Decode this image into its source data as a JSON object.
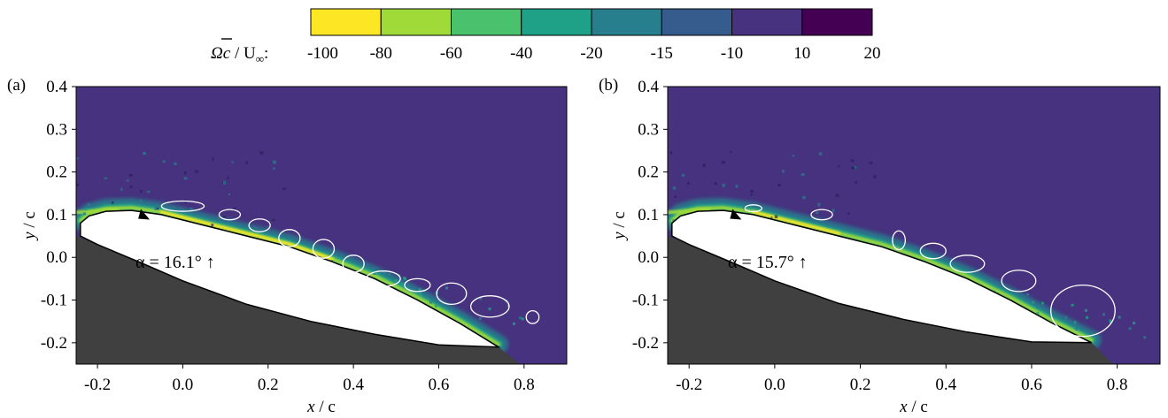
{
  "colorbar": {
    "label_main": "Ωc",
    "label_rest": " / U",
    "label_sub": "∞",
    "label_colon": ":",
    "ticks": [
      "-100",
      "-80",
      "-60",
      "-40",
      "-20",
      "-15",
      "-10",
      "10",
      "20"
    ],
    "colors": [
      "#fde725",
      "#a0da39",
      "#4ac16d",
      "#1fa187",
      "#277f8e",
      "#365c8d",
      "#46327e",
      "#440154"
    ]
  },
  "colors": {
    "background_field": "#46327e",
    "airfoil": "#ffffff",
    "shadow": "#404040",
    "contour": "#ffffff",
    "shear_layer_weak": "#277f8e",
    "shear_layer_mid": "#1fa187",
    "shear_layer_strong": "#a0da39",
    "shear_layer_peak": "#fde725"
  },
  "chart_data": [
    {
      "type": "heatmap",
      "panel_label": "(a)",
      "xlabel_main": "x",
      "xlabel_rest": " / c",
      "ylabel_main": "y",
      "ylabel_rest": " / c",
      "xlim": [
        -0.25,
        0.9
      ],
      "ylim": [
        -0.25,
        0.4
      ],
      "xticks": [
        -0.2,
        0.0,
        0.2,
        0.4,
        0.6,
        0.8
      ],
      "xtick_labels": [
        "-0.2",
        "0.0",
        "0.2",
        "0.4",
        "0.6",
        "0.8"
      ],
      "yticks": [
        -0.2,
        -0.1,
        0.0,
        0.1,
        0.2,
        0.3,
        0.4
      ],
      "ytick_labels": [
        "-0.2",
        "-0.1",
        "0.0",
        "0.1",
        "0.2",
        "0.3",
        "0.4"
      ],
      "annotation": "α = 16.1° ↑",
      "airfoil": {
        "upper": [
          [
            -0.24,
            0.08
          ],
          [
            -0.22,
            0.097
          ],
          [
            -0.18,
            0.108
          ],
          [
            -0.12,
            0.11
          ],
          [
            -0.05,
            0.1
          ],
          [
            0.05,
            0.075
          ],
          [
            0.15,
            0.05
          ],
          [
            0.25,
            0.025
          ],
          [
            0.35,
            -0.01
          ],
          [
            0.45,
            -0.05
          ],
          [
            0.55,
            -0.1
          ],
          [
            0.65,
            -0.155
          ],
          [
            0.74,
            -0.21
          ]
        ],
        "lower": [
          [
            0.74,
            -0.21
          ],
          [
            0.6,
            -0.205
          ],
          [
            0.45,
            -0.18
          ],
          [
            0.3,
            -0.15
          ],
          [
            0.15,
            -0.11
          ],
          [
            0.0,
            -0.055
          ],
          [
            -0.1,
            -0.012
          ],
          [
            -0.2,
            0.03
          ],
          [
            -0.24,
            0.05
          ]
        ]
      },
      "shadow": [
        [
          -0.25,
          0.05
        ],
        [
          -0.2,
          0.03
        ],
        [
          -0.1,
          -0.012
        ],
        [
          0.0,
          -0.055
        ],
        [
          0.15,
          -0.11
        ],
        [
          0.3,
          -0.15
        ],
        [
          0.45,
          -0.18
        ],
        [
          0.6,
          -0.205
        ],
        [
          0.74,
          -0.21
        ],
        [
          0.79,
          -0.25
        ],
        [
          -0.25,
          -0.25
        ]
      ],
      "marker": [
        -0.09,
        0.105
      ],
      "shear_layer": {
        "start": [
          -0.24,
          0.1
        ],
        "end": [
          0.8,
          -0.15
        ],
        "peak_range": [
          -0.05,
          0.35
        ]
      },
      "vortex_contours": [
        {
          "x": 0.0,
          "y": 0.12,
          "rx": 0.05,
          "ry": 0.012
        },
        {
          "x": 0.11,
          "y": 0.1,
          "rx": 0.025,
          "ry": 0.012
        },
        {
          "x": 0.18,
          "y": 0.075,
          "rx": 0.025,
          "ry": 0.015
        },
        {
          "x": 0.25,
          "y": 0.045,
          "rx": 0.025,
          "ry": 0.02
        },
        {
          "x": 0.33,
          "y": 0.02,
          "rx": 0.025,
          "ry": 0.022
        },
        {
          "x": 0.4,
          "y": -0.015,
          "rx": 0.025,
          "ry": 0.02
        },
        {
          "x": 0.47,
          "y": -0.05,
          "rx": 0.04,
          "ry": 0.018
        },
        {
          "x": 0.55,
          "y": -0.065,
          "rx": 0.03,
          "ry": 0.015
        },
        {
          "x": 0.63,
          "y": -0.085,
          "rx": 0.035,
          "ry": 0.025
        },
        {
          "x": 0.72,
          "y": -0.115,
          "rx": 0.045,
          "ry": 0.025
        },
        {
          "x": 0.82,
          "y": -0.14,
          "rx": 0.015,
          "ry": 0.015
        }
      ]
    },
    {
      "type": "heatmap",
      "panel_label": "(b)",
      "xlabel_main": "x",
      "xlabel_rest": " / c",
      "ylabel_main": "y",
      "ylabel_rest": " / c",
      "xlim": [
        -0.25,
        0.9
      ],
      "ylim": [
        -0.25,
        0.4
      ],
      "xticks": [
        -0.2,
        0.0,
        0.2,
        0.4,
        0.6,
        0.8
      ],
      "xtick_labels": [
        "-0.2",
        "0.0",
        "0.2",
        "0.4",
        "0.6",
        "0.8"
      ],
      "yticks": [
        -0.2,
        -0.1,
        0.0,
        0.1,
        0.2,
        0.3,
        0.4
      ],
      "ytick_labels": [
        "-0.2",
        "-0.1",
        "0.0",
        "0.1",
        "0.2",
        "0.3",
        "0.4"
      ],
      "annotation": "α = 15.7° ↑",
      "airfoil": {
        "upper": [
          [
            -0.24,
            0.08
          ],
          [
            -0.22,
            0.097
          ],
          [
            -0.18,
            0.108
          ],
          [
            -0.12,
            0.11
          ],
          [
            -0.05,
            0.1
          ],
          [
            0.05,
            0.075
          ],
          [
            0.15,
            0.05
          ],
          [
            0.25,
            0.025
          ],
          [
            0.35,
            -0.01
          ],
          [
            0.45,
            -0.05
          ],
          [
            0.55,
            -0.1
          ],
          [
            0.65,
            -0.155
          ],
          [
            0.74,
            -0.2
          ]
        ],
        "lower": [
          [
            0.74,
            -0.2
          ],
          [
            0.6,
            -0.198
          ],
          [
            0.45,
            -0.175
          ],
          [
            0.3,
            -0.145
          ],
          [
            0.15,
            -0.108
          ],
          [
            0.0,
            -0.055
          ],
          [
            -0.1,
            -0.012
          ],
          [
            -0.2,
            0.03
          ],
          [
            -0.24,
            0.05
          ]
        ]
      },
      "shadow": [
        [
          -0.25,
          0.05
        ],
        [
          -0.2,
          0.03
        ],
        [
          -0.1,
          -0.012
        ],
        [
          0.0,
          -0.055
        ],
        [
          0.15,
          -0.108
        ],
        [
          0.3,
          -0.145
        ],
        [
          0.45,
          -0.175
        ],
        [
          0.6,
          -0.198
        ],
        [
          0.74,
          -0.2
        ],
        [
          0.79,
          -0.25
        ],
        [
          -0.25,
          -0.25
        ]
      ],
      "marker": [
        -0.09,
        0.105
      ],
      "shear_layer": {
        "start": [
          -0.24,
          0.1
        ],
        "end": [
          0.88,
          -0.2
        ],
        "peak_range": [
          -0.05,
          0.2
        ]
      },
      "vortex_contours": [
        {
          "x": -0.05,
          "y": 0.115,
          "rx": 0.02,
          "ry": 0.008
        },
        {
          "x": 0.11,
          "y": 0.1,
          "rx": 0.025,
          "ry": 0.012
        },
        {
          "x": 0.29,
          "y": 0.04,
          "rx": 0.015,
          "ry": 0.022
        },
        {
          "x": 0.37,
          "y": 0.015,
          "rx": 0.03,
          "ry": 0.018
        },
        {
          "x": 0.45,
          "y": -0.015,
          "rx": 0.04,
          "ry": 0.02
        },
        {
          "x": 0.57,
          "y": -0.055,
          "rx": 0.04,
          "ry": 0.025
        },
        {
          "x": 0.72,
          "y": -0.125,
          "rx": 0.075,
          "ry": 0.06
        }
      ]
    }
  ]
}
